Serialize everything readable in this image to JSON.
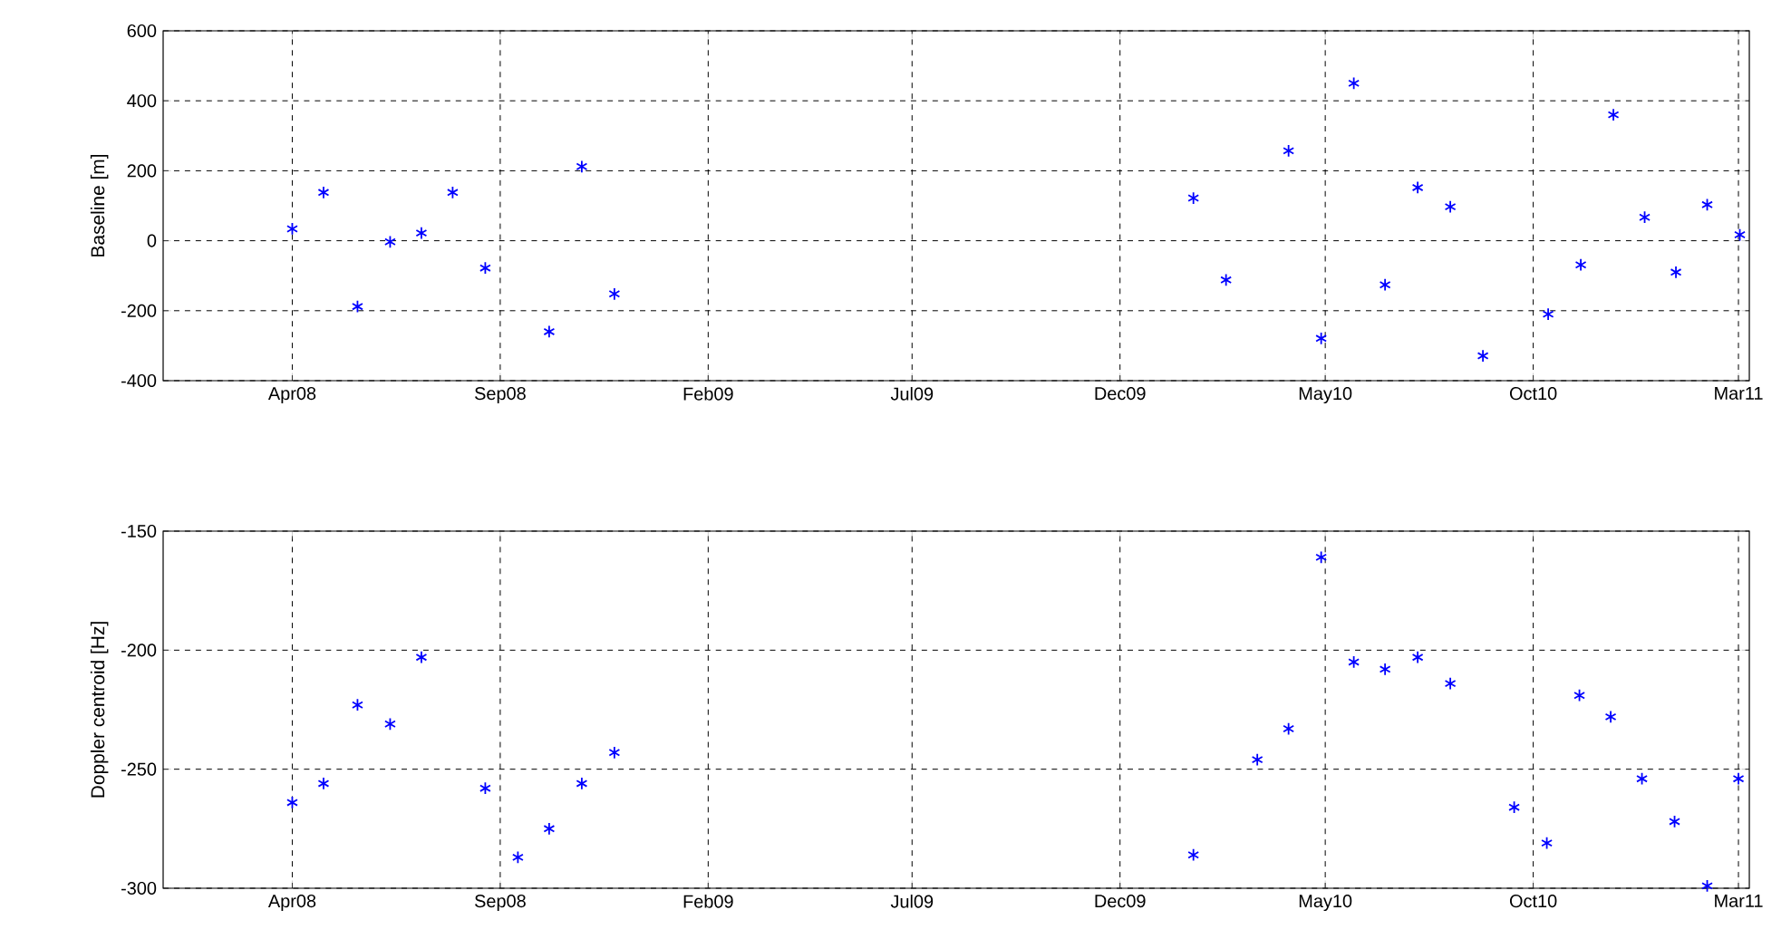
{
  "chart_data": [
    {
      "type": "scatter",
      "ylabel": "Baseline [m]",
      "marker": "cross",
      "grid": true,
      "color": "#0000ff",
      "x": [
        "2008-04-01",
        "2008-04-24",
        "2008-05-19",
        "2008-06-12",
        "2008-07-05",
        "2008-07-28",
        "2008-08-21",
        "2008-10-07",
        "2008-10-31",
        "2008-11-24",
        "2010-01-24",
        "2010-02-17",
        "2010-04-04",
        "2010-04-28",
        "2010-05-22",
        "2010-06-14",
        "2010-07-08",
        "2010-08-01",
        "2010-08-25",
        "2010-10-12",
        "2010-11-05",
        "2010-11-29",
        "2010-12-22",
        "2011-01-14",
        "2011-02-06",
        "2011-03-02"
      ],
      "values": [
        34,
        138,
        -188,
        -3,
        22,
        138,
        -78,
        -260,
        212,
        -152,
        122,
        -112,
        257,
        -279,
        450,
        -126,
        152,
        97,
        -329,
        -210,
        -69,
        360,
        67,
        -90,
        103,
        17
      ],
      "xlim": [
        "2007-12-28",
        "2011-03-09"
      ],
      "xticks": [
        {
          "value": "2008-04-01",
          "label": "Apr08"
        },
        {
          "value": "2008-09-01",
          "label": "Sep08"
        },
        {
          "value": "2009-02-01",
          "label": "Feb09"
        },
        {
          "value": "2009-07-01",
          "label": "Jul09"
        },
        {
          "value": "2009-12-01",
          "label": "Dec09"
        },
        {
          "value": "2010-05-01",
          "label": "May10"
        },
        {
          "value": "2010-10-01",
          "label": "Oct10"
        },
        {
          "value": "2011-03-01",
          "label": "Mar11"
        }
      ],
      "ylim": [
        -400,
        600
      ],
      "yticks": [
        -400,
        -200,
        0,
        200,
        400,
        600
      ]
    },
    {
      "type": "scatter",
      "ylabel": "Doppler centroid [Hz]",
      "marker": "cross",
      "grid": true,
      "color": "#0000ff",
      "x": [
        "2008-04-01",
        "2008-04-24",
        "2008-05-19",
        "2008-06-12",
        "2008-07-05",
        "2008-08-21",
        "2008-09-14",
        "2008-10-07",
        "2008-10-31",
        "2008-11-24",
        "2010-01-24",
        "2010-03-12",
        "2010-04-04",
        "2010-04-28",
        "2010-05-22",
        "2010-06-14",
        "2010-07-08",
        "2010-08-01",
        "2010-09-17",
        "2010-10-11",
        "2010-11-04",
        "2010-11-27",
        "2010-12-20",
        "2011-01-13",
        "2011-02-06",
        "2011-03-01"
      ],
      "values": [
        -264,
        -256,
        -223,
        -231,
        -203,
        -258,
        -287,
        -275,
        -256,
        -243,
        -286,
        -246,
        -233,
        -161,
        -205,
        -208,
        -203,
        -214,
        -266,
        -281,
        -219,
        -228,
        -254,
        -272,
        -299,
        -254
      ],
      "xlim": [
        "2007-12-28",
        "2011-03-09"
      ],
      "xticks": [
        {
          "value": "2008-04-01",
          "label": "Apr08"
        },
        {
          "value": "2008-09-01",
          "label": "Sep08"
        },
        {
          "value": "2009-02-01",
          "label": "Feb09"
        },
        {
          "value": "2009-07-01",
          "label": "Jul09"
        },
        {
          "value": "2009-12-01",
          "label": "Dec09"
        },
        {
          "value": "2010-05-01",
          "label": "May10"
        },
        {
          "value": "2010-10-01",
          "label": "Oct10"
        },
        {
          "value": "2011-03-01",
          "label": "Mar11"
        }
      ],
      "ylim": [
        -300,
        -150
      ],
      "yticks": [
        -300,
        -250,
        -200,
        -150
      ]
    }
  ]
}
